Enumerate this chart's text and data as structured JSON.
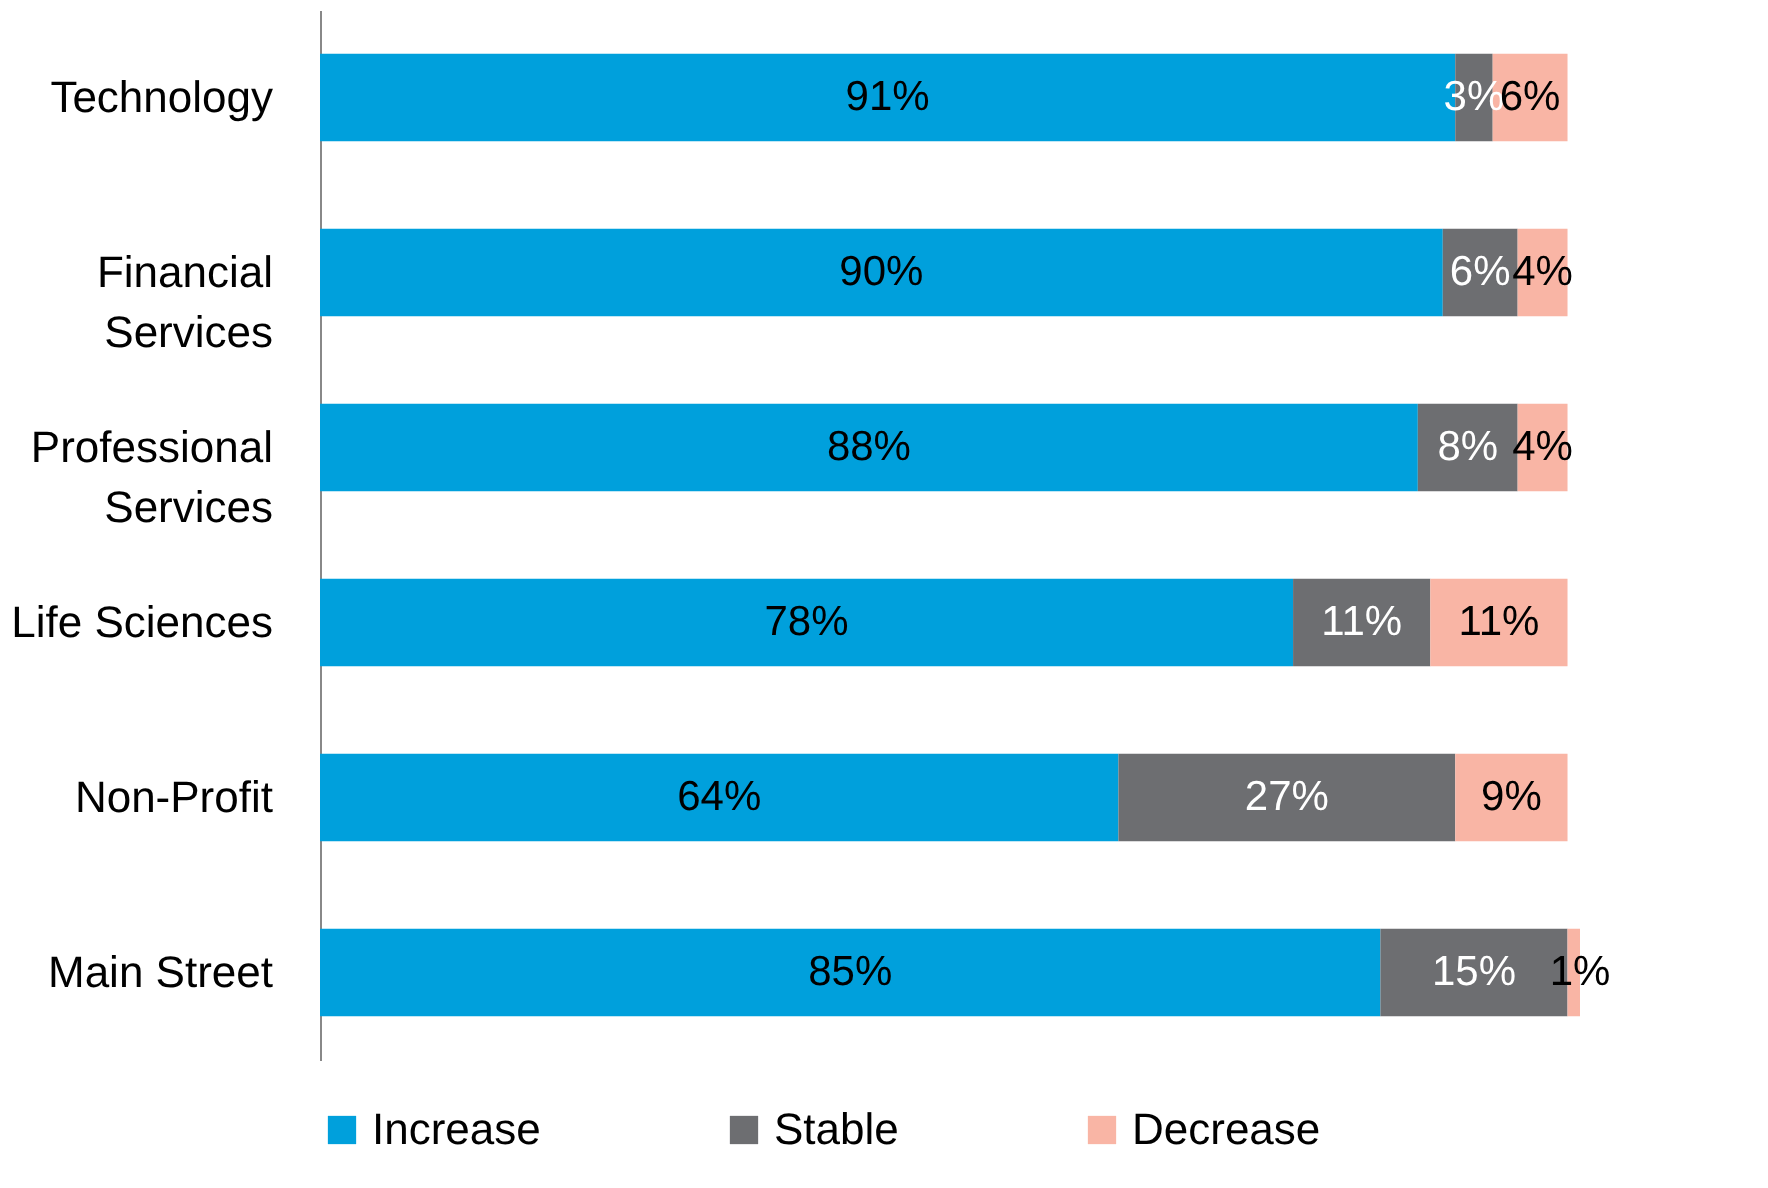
{
  "chart_data": {
    "type": "bar",
    "orientation": "horizontal",
    "stacked": true,
    "legend": "bottom",
    "data_labels": true,
    "categories": [
      "Technology",
      "Financial Services",
      "Professional Services",
      "Life Sciences",
      "Non-Profit",
      "Main Street"
    ],
    "series": [
      {
        "name": "Increase",
        "color": "#00a0dc",
        "values": [
          91,
          90,
          88,
          78,
          64,
          85
        ],
        "value_labels": [
          "91%",
          "90%",
          "88%",
          "78%",
          "64%",
          "85%"
        ]
      },
      {
        "name": "Stable",
        "color": "#6d6e71",
        "values": [
          3,
          6,
          8,
          11,
          27,
          15
        ],
        "value_labels": [
          "3%",
          "6%",
          "8%",
          "11%",
          "27%",
          "15%"
        ]
      },
      {
        "name": "Decrease",
        "color": "#f9b5a5",
        "values": [
          6,
          4,
          4,
          11,
          9,
          1
        ],
        "value_labels": [
          "6%",
          "4%",
          "4%",
          "11%",
          "9%",
          "1%"
        ]
      }
    ]
  }
}
